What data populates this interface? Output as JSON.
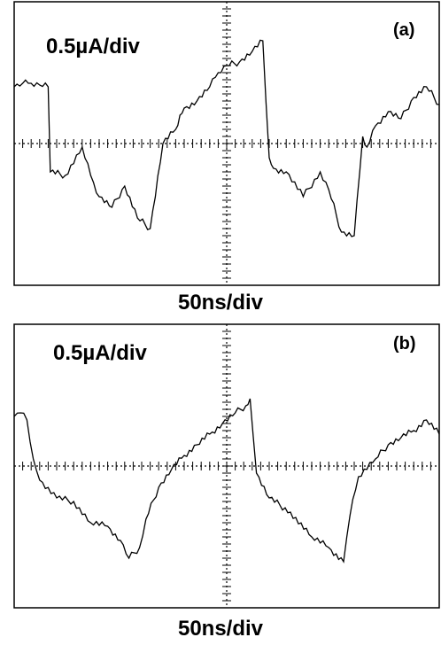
{
  "chart_data": [
    {
      "type": "line",
      "panel_label": "(a)",
      "scale_label": "0.5µA/div",
      "xlabel": "50ns/div",
      "ylabel": "",
      "grid": "dotted center axes with tick marks",
      "xlim": [
        0,
        10
      ],
      "ylim": [
        -4,
        4
      ],
      "series": [
        {
          "color": "#000000",
          "x": [
            0,
            0.2,
            0.4,
            0.6,
            0.8,
            0.85,
            1.2,
            1.6,
            1.8,
            2.0,
            2.3,
            2.6,
            2.9,
            3.2,
            3.5,
            3.8,
            3.9,
            4.0,
            4.3,
            4.6,
            4.8,
            5.0,
            5.3,
            5.6,
            5.85,
            6.0,
            6.1,
            6.4,
            6.8,
            7.2,
            7.4,
            7.7,
            8.0,
            8.2,
            8.3,
            8.5,
            8.8,
            9.1,
            9.4,
            9.7,
            10
          ],
          "values": [
            1.6,
            1.7,
            1.7,
            1.65,
            1.6,
            -0.8,
            -0.9,
            -0.1,
            -0.9,
            -1.5,
            -1.8,
            -1.2,
            -2.1,
            -2.4,
            0.0,
            0.4,
            0.8,
            1.0,
            1.2,
            1.6,
            2.0,
            2.2,
            2.3,
            2.6,
            2.9,
            -0.4,
            -0.7,
            -0.8,
            -1.5,
            -0.8,
            -1.3,
            -2.5,
            -2.6,
            0.2,
            -0.1,
            0.5,
            0.9,
            0.7,
            1.3,
            1.6,
            1.1
          ]
        }
      ]
    },
    {
      "type": "line",
      "panel_label": "(b)",
      "scale_label": "0.5µA/div",
      "xlabel": "50ns/div",
      "ylabel": "",
      "grid": "dotted center axes with tick marks",
      "xlim": [
        0,
        10
      ],
      "ylim": [
        -4,
        4
      ],
      "series": [
        {
          "color": "#000000",
          "x": [
            0,
            0.15,
            0.3,
            0.45,
            0.6,
            1.0,
            1.4,
            1.8,
            2.2,
            2.5,
            2.7,
            2.95,
            3.1,
            3.4,
            3.7,
            4.0,
            4.3,
            4.6,
            4.9,
            5.2,
            5.45,
            5.55,
            5.7,
            6.0,
            6.5,
            7.0,
            7.4,
            7.75,
            7.9,
            8.1,
            8.5,
            8.8,
            9.1,
            9.4,
            9.7,
            10
          ],
          "values": [
            1.4,
            1.5,
            1.3,
            0.2,
            -0.4,
            -0.9,
            -1.0,
            -1.6,
            -1.7,
            -2.1,
            -2.6,
            -2.3,
            -1.5,
            -0.6,
            -0.1,
            0.3,
            0.6,
            0.9,
            1.2,
            1.5,
            1.7,
            1.9,
            -0.2,
            -0.9,
            -1.3,
            -2.0,
            -2.3,
            -2.7,
            -1.4,
            -0.3,
            0.2,
            0.6,
            0.8,
            1.0,
            1.3,
            0.9
          ]
        }
      ]
    }
  ]
}
